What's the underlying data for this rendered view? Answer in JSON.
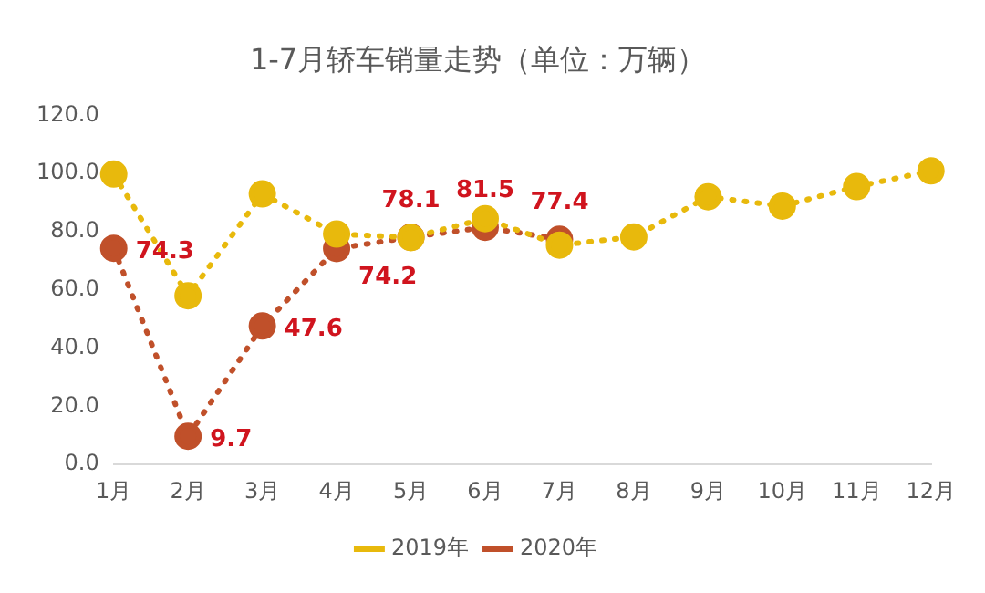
{
  "chart_data": {
    "type": "line",
    "title": "1-7月轿车销量走势（单位：万辆）",
    "categories": [
      "1月",
      "2月",
      "3月",
      "4月",
      "5月",
      "6月",
      "7月",
      "8月",
      "9月",
      "10月",
      "11月",
      "12月"
    ],
    "series": [
      {
        "name": "2019年",
        "color": "#e8b90c",
        "values": [
          99.8,
          58.0,
          93.0,
          79.2,
          78.0,
          84.5,
          75.4,
          78.2,
          92.0,
          88.8,
          95.5,
          100.9
        ]
      },
      {
        "name": "2020年",
        "color": "#c0502a",
        "values": [
          74.3,
          9.7,
          47.6,
          74.2,
          78.1,
          81.5,
          77.4,
          null,
          null,
          null,
          null,
          null
        ],
        "value_labels": [
          "74.3",
          "9.7",
          "47.6",
          "74.2",
          "78.1",
          "81.5",
          "77.4",
          null,
          null,
          null,
          null,
          null
        ]
      }
    ],
    "ylim": [
      0,
      120
    ],
    "yticks": [
      {
        "value": 0,
        "label": "0.0"
      },
      {
        "value": 20,
        "label": "20.0"
      },
      {
        "value": 40,
        "label": "40.0"
      },
      {
        "value": 60,
        "label": "60.0"
      },
      {
        "value": 80,
        "label": "80.0"
      },
      {
        "value": 100,
        "label": "100.0"
      },
      {
        "value": 120,
        "label": "120.0"
      }
    ],
    "grid": false,
    "legend": "bottom",
    "marker": "circle",
    "line_style": "dotted"
  }
}
